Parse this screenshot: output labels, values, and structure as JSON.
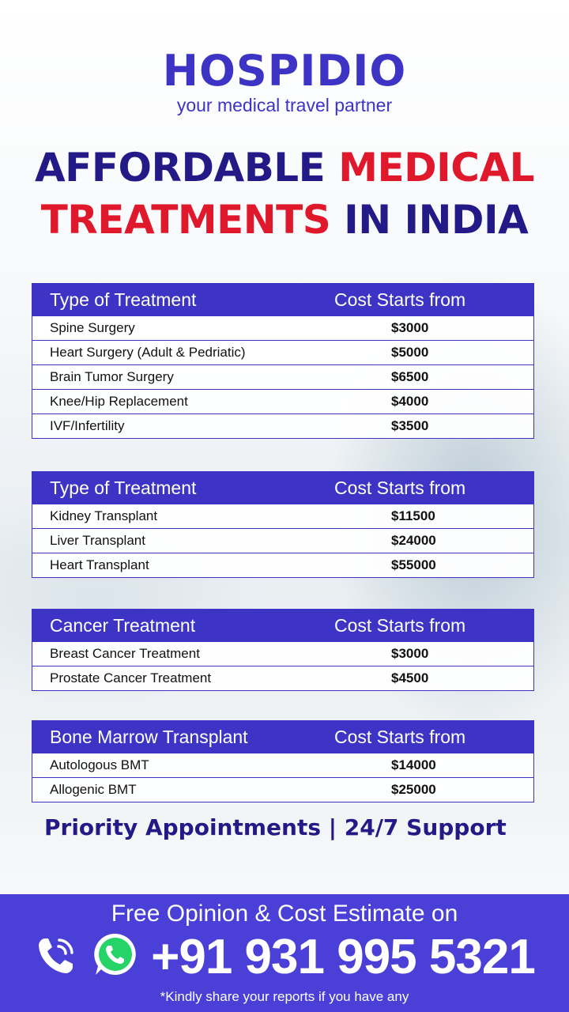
{
  "brand": {
    "name": "HOSPIDIO",
    "tagline": "your medical travel partner"
  },
  "headline": {
    "part1": "AFFORDABLE ",
    "part2": "MEDICAL",
    "part3": "TREATMENTS",
    "part4": " IN INDIA"
  },
  "tables": [
    {
      "header": [
        "Type of Treatment",
        "Cost Starts from"
      ],
      "rows": [
        [
          "Spine Surgery",
          "$3000"
        ],
        [
          "Heart Surgery (Adult & Pedriatic)",
          "$5000"
        ],
        [
          "Brain Tumor Surgery",
          "$6500"
        ],
        [
          "Knee/Hip Replacement",
          "$4000"
        ],
        [
          "IVF/Infertility",
          "$3500"
        ]
      ]
    },
    {
      "header": [
        "Type of Treatment",
        "Cost Starts from"
      ],
      "rows": [
        [
          "Kidney Transplant",
          "$11500"
        ],
        [
          "Liver Transplant",
          "$24000"
        ],
        [
          "Heart Transplant",
          "$55000"
        ]
      ]
    },
    {
      "header": [
        "Cancer Treatment",
        "Cost Starts from"
      ],
      "rows": [
        [
          "Breast Cancer Treatment",
          "$3000"
        ],
        [
          "Prostate Cancer Treatment",
          "$4500"
        ]
      ]
    },
    {
      "header": [
        "Bone Marrow Transplant",
        "Cost Starts from"
      ],
      "rows": [
        [
          "Autologous BMT",
          "$14000"
        ],
        [
          "Allogenic BMT",
          "$25000"
        ]
      ]
    }
  ],
  "priority": "Priority Appointments | 24/7 Support",
  "footer": {
    "line1": "Free Opinion & Cost Estimate on",
    "phone": "+91 931 995 5321",
    "note": "*Kindly share your reports if you have any",
    "icons": [
      "phone-icon",
      "whatsapp-icon"
    ]
  },
  "colors": {
    "brand": "#3d34c5",
    "navy": "#241a87",
    "accent_red": "#e0182c",
    "footer": "#4a3fd6"
  }
}
